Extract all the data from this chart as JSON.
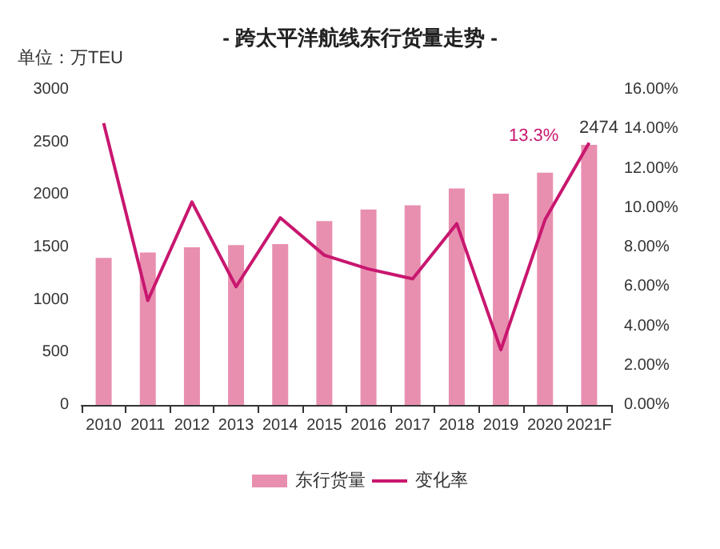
{
  "chart_data": {
    "type": "bar",
    "title": "- 跨太平洋航线东行货量走势 -",
    "ylabel": "单位：万TEU",
    "categories": [
      "2010",
      "2011",
      "2012",
      "2013",
      "2014",
      "2015",
      "2016",
      "2017",
      "2018",
      "2019",
      "2020",
      "2021F"
    ],
    "series": [
      {
        "name": "东行货量",
        "color": "#e88fb0",
        "values": [
          1400,
          1450,
          1500,
          1520,
          1530,
          1750,
          1860,
          1900,
          2060,
          2010,
          2210,
          2474
        ],
        "value_labels": [
          null,
          null,
          null,
          null,
          null,
          null,
          null,
          null,
          null,
          null,
          null,
          "2474"
        ]
      },
      {
        "name": "变化率",
        "type": "line",
        "axis": "y2",
        "color": "#c8176f",
        "values": [
          14.3,
          5.3,
          10.3,
          6.0,
          9.5,
          7.6,
          6.9,
          6.4,
          9.2,
          2.8,
          9.4,
          13.3
        ],
        "value_labels": [
          null,
          null,
          null,
          null,
          null,
          null,
          null,
          null,
          null,
          null,
          null,
          "13.3%"
        ]
      }
    ],
    "ylim": [
      0,
      3000
    ],
    "yticks": [
      0,
      500,
      1000,
      1500,
      2000,
      2500,
      3000
    ],
    "y2lim": [
      0,
      16
    ],
    "y2ticks": [
      {
        "value": 0,
        "label": "0.00%"
      },
      {
        "value": 2,
        "label": "2.00%"
      },
      {
        "value": 4,
        "label": "4.00%"
      },
      {
        "value": 6,
        "label": "6.00%"
      },
      {
        "value": 8,
        "label": "8.00%"
      },
      {
        "value": 10,
        "label": "10.00%"
      },
      {
        "value": 12,
        "label": "12.00%"
      },
      {
        "value": 14,
        "label": "14.00%"
      },
      {
        "value": 16,
        "label": "16.00%"
      }
    ],
    "grid": false,
    "legend": "bottom",
    "marker": "none",
    "line_style": "solid"
  }
}
